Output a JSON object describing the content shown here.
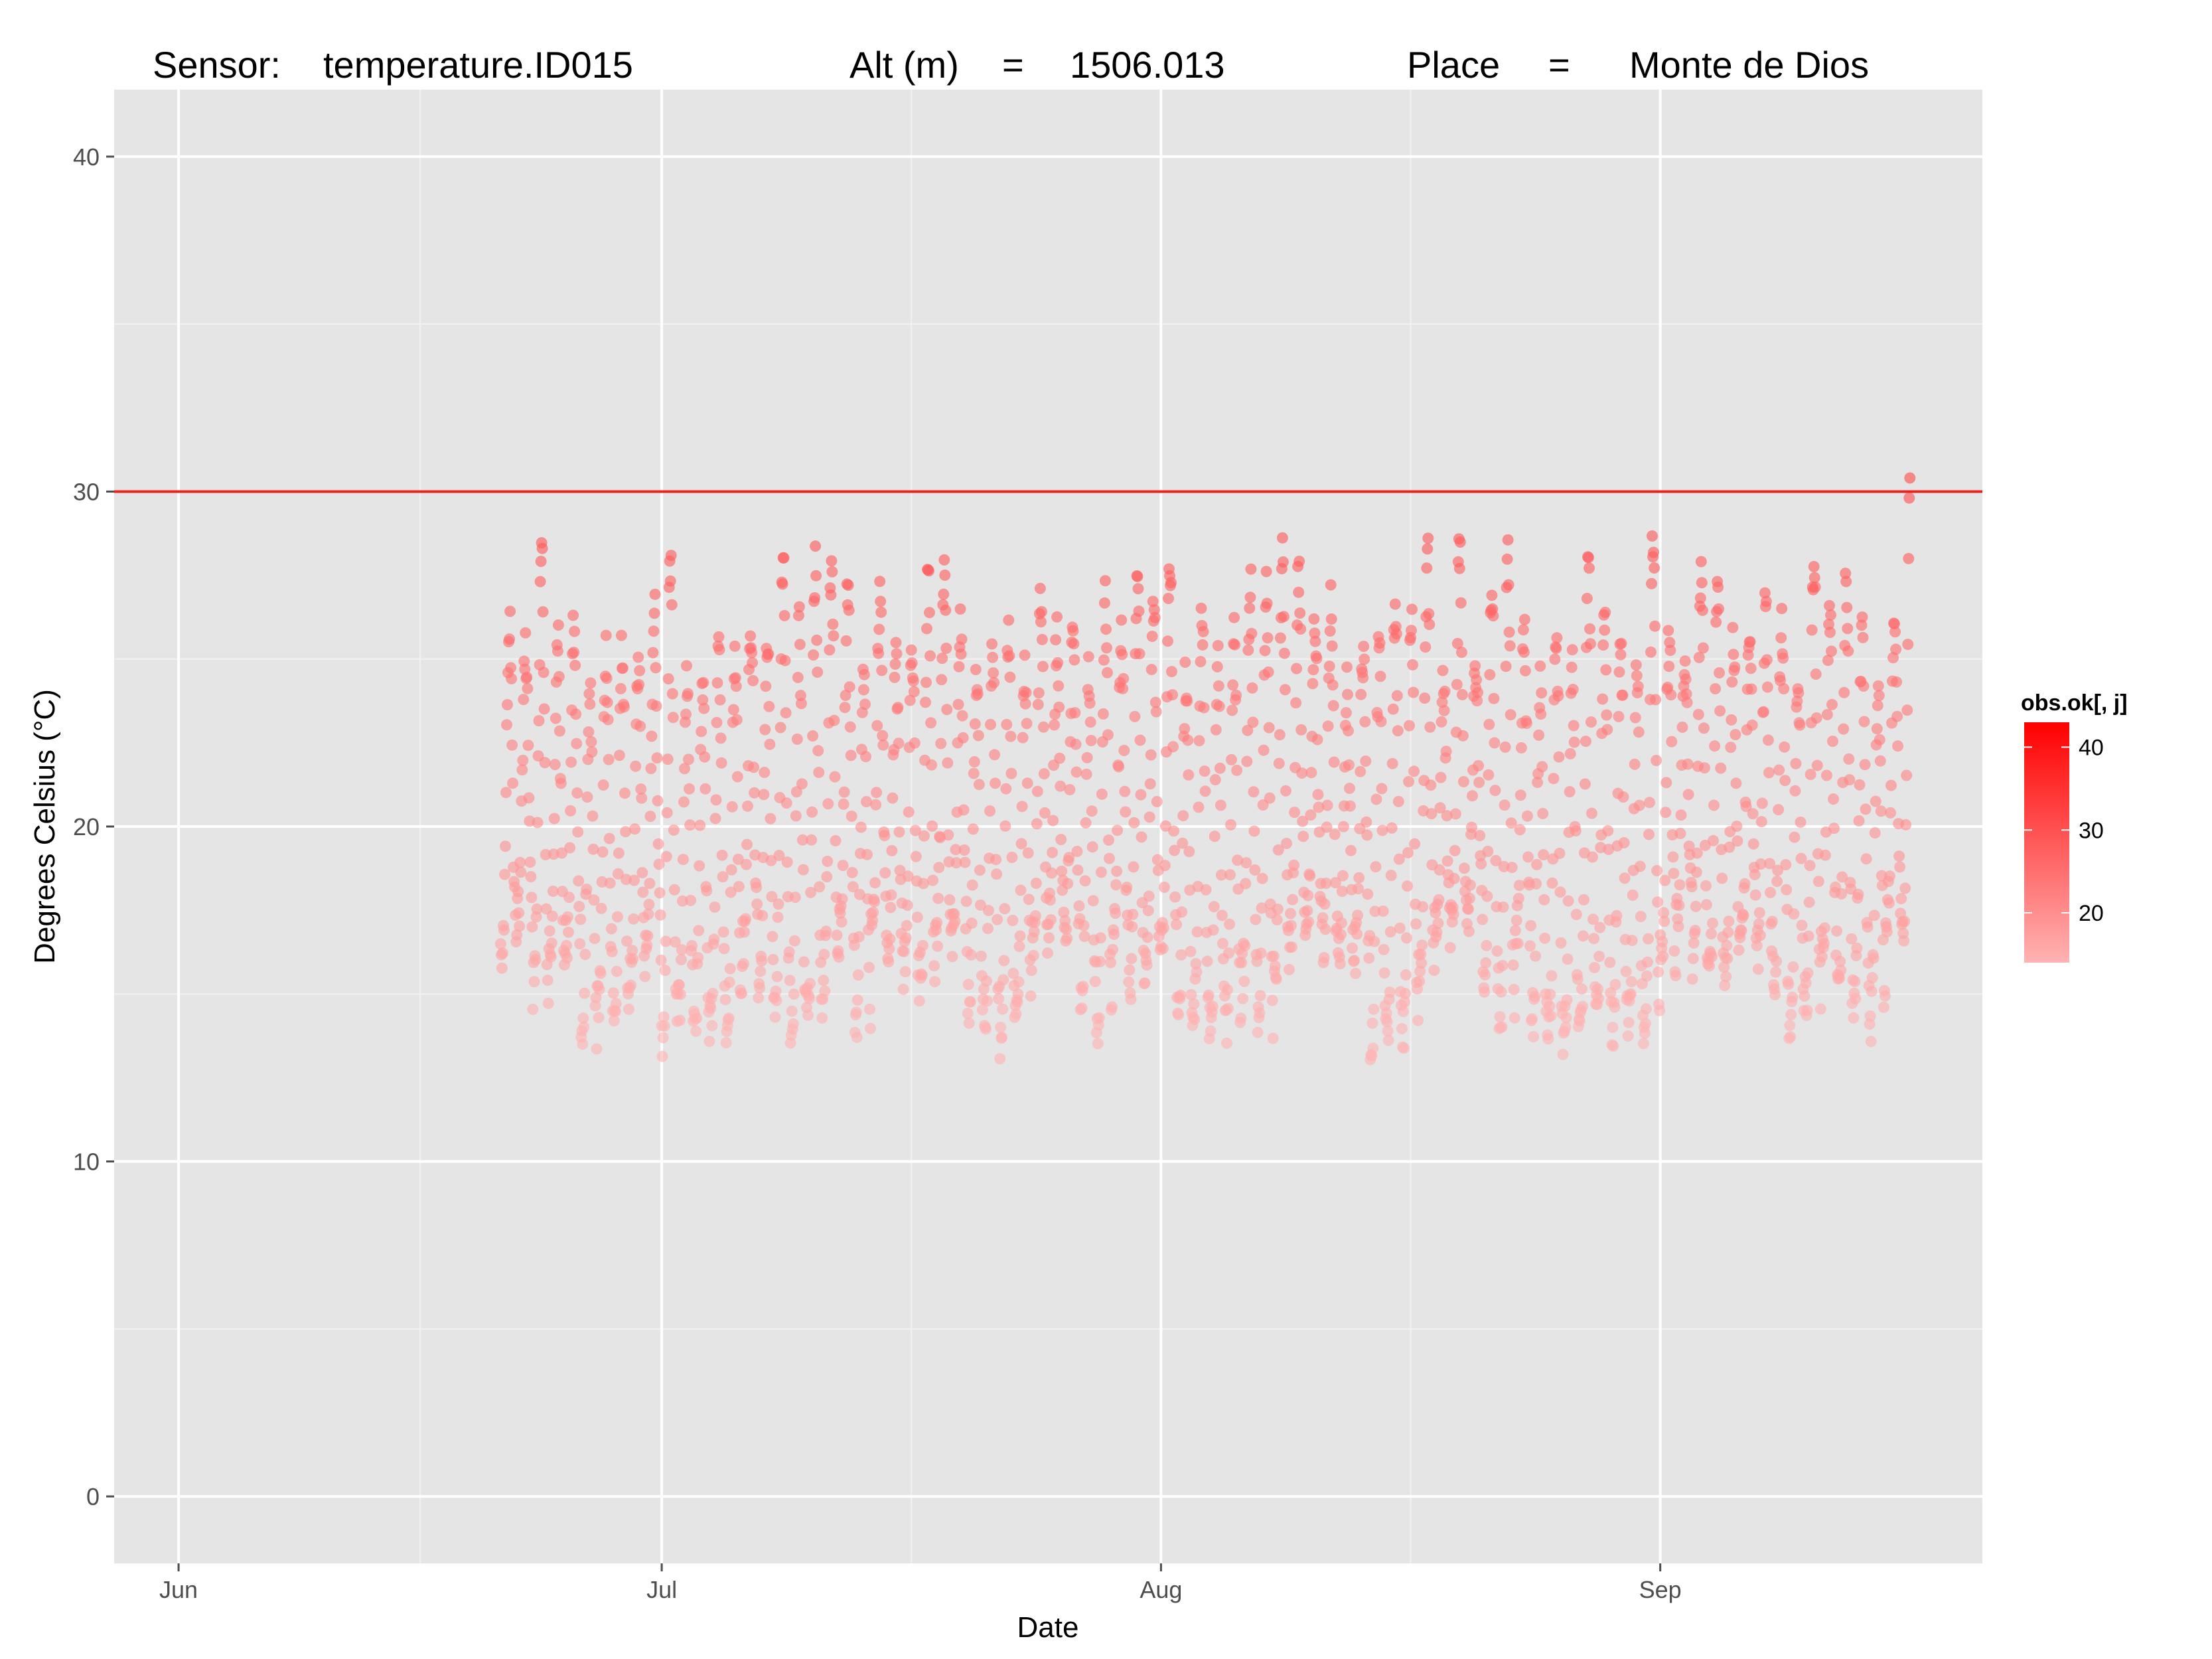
{
  "chart_data": {
    "type": "scatter",
    "title_parts": {
      "sensor_label": "Sensor:",
      "sensor_value": "temperature.ID015",
      "alt_label": "Alt (m)",
      "alt_eq": "=",
      "alt_value": "1506.013",
      "place_label": "Place",
      "place_eq": "=",
      "place_value": "Monte de Dios"
    },
    "xlabel": "Date",
    "ylabel": "Degrees Celsius (°C)",
    "xlim": [
      "2013-05-28",
      "2013-09-21"
    ],
    "ylim": [
      -2,
      42
    ],
    "x_ticks": [
      {
        "date": "2013-06-01",
        "label": "Jun"
      },
      {
        "date": "2013-07-01",
        "label": "Jul"
      },
      {
        "date": "2013-08-01",
        "label": "Aug"
      },
      {
        "date": "2013-09-01",
        "label": "Sep"
      }
    ],
    "y_ticks": [
      0,
      10,
      20,
      30,
      40
    ],
    "threshold": {
      "value": 30,
      "color": "#e8231e"
    },
    "legend": {
      "title": "obs.ok[, j]",
      "position": "right",
      "range": [
        14,
        43
      ],
      "ticks": [
        20,
        30,
        40
      ],
      "color_low": "#ffb3b3",
      "color_high": "#ff0000"
    },
    "panel_background": "#e5e5e5",
    "grid": true,
    "series_summary": {
      "name": "",
      "x_start": "2013-06-21",
      "x_end": "2013-09-16",
      "daily_min_range": [
        13.6,
        17.5
      ],
      "daily_max_range": [
        24.0,
        31.6
      ],
      "observations_per_day": 24
    }
  }
}
